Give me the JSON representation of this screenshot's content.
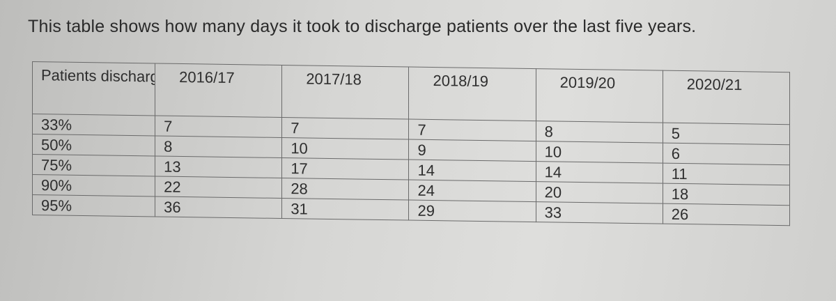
{
  "intro_text": "This table shows how many days it took to discharge patients over the last five years.",
  "table": {
    "header": {
      "label": "Patients discharged",
      "years": [
        "2016/17",
        "2017/18",
        "2018/19",
        "2019/20",
        "2020/21"
      ]
    },
    "rows": [
      {
        "label": "33%",
        "values": [
          "7",
          "7",
          "7",
          "8",
          "5"
        ]
      },
      {
        "label": "50%",
        "values": [
          "8",
          "10",
          "9",
          "10",
          "6"
        ]
      },
      {
        "label": "75%",
        "values": [
          "13",
          "17",
          "14",
          "14",
          "11"
        ]
      },
      {
        "label": "90%",
        "values": [
          "22",
          "28",
          "24",
          "20",
          "18"
        ]
      },
      {
        "label": "95%",
        "values": [
          "36",
          "31",
          "29",
          "33",
          "26"
        ]
      }
    ]
  }
}
